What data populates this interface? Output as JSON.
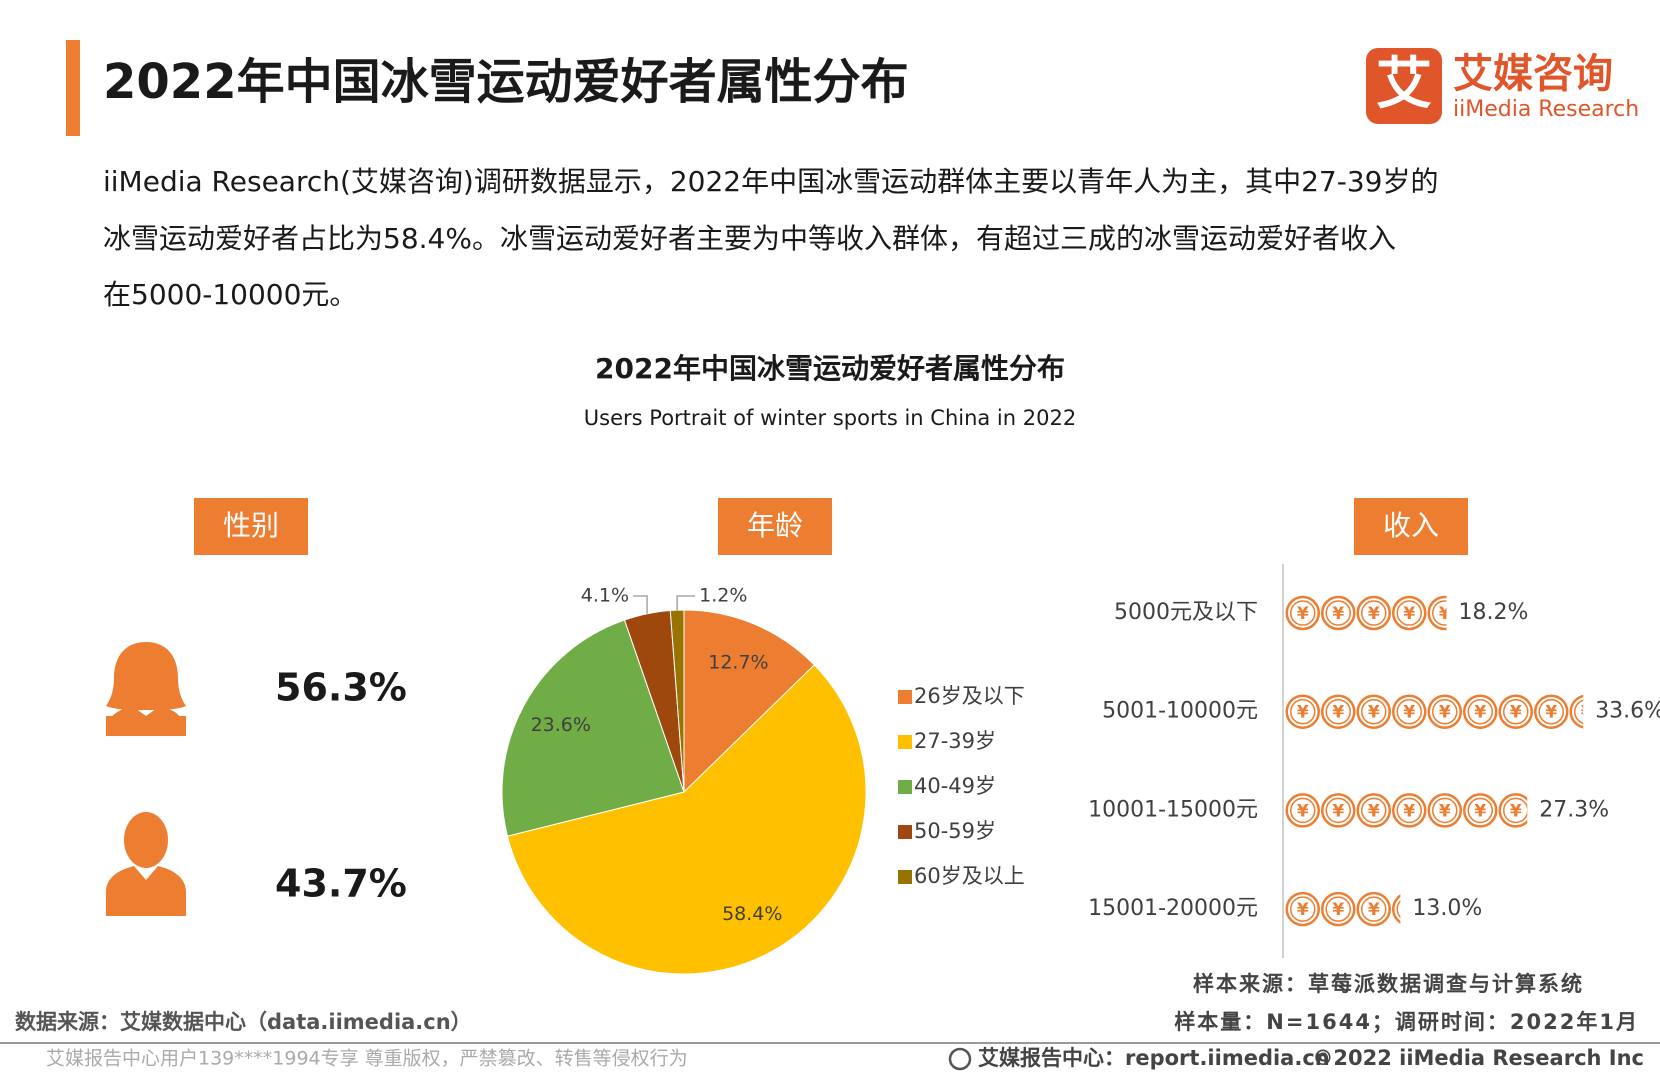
{
  "header": {
    "title": "2022年中国冰雪运动爱好者属性分布",
    "logo_mark": "艾",
    "logo_name": "艾媒咨询",
    "logo_en": "iiMedia Research"
  },
  "description": [
    "iiMedia Research(艾媒咨询)调研数据显示，2022年中国冰雪运动群体主要以青年人为主，其中27-39岁的",
    "冰雪运动爱好者占比为58.4%。冰雪运动爱好者主要为中等收入群体，有超过三成的冰雪运动爱好者收入",
    "在5000-10000元。"
  ],
  "figure": {
    "title": "2022年中国冰雪运动爱好者属性分布",
    "subtitle": "Users Portrait of winter sports in China in 2022"
  },
  "chart_data": [
    {
      "type": "icons",
      "title": "性别",
      "categories": [
        null,
        null
      ],
      "values": [
        56.3,
        43.7
      ],
      "value_labels": [
        "56.3%",
        "43.7%"
      ],
      "color": "#ed7d31"
    },
    {
      "type": "pie",
      "title": "年龄",
      "categories": [
        "26岁及以下",
        "27-39岁",
        "40-49岁",
        "50-59岁",
        "60岁及以上"
      ],
      "values": [
        12.7,
        58.4,
        23.6,
        4.1,
        1.2
      ],
      "value_labels": [
        "12.7%",
        "58.4%",
        "23.6%",
        "4.1%",
        "1.2%"
      ],
      "colors": [
        "#ed7d31",
        "#ffc000",
        "#70ad47",
        "#9e480e",
        "#997300"
      ],
      "legend": "right"
    },
    {
      "type": "pictograph",
      "title": "收入",
      "categories": [
        "5000元及以下",
        "5001-10000元",
        "10001-15000元",
        "15001-20000元"
      ],
      "values": [
        18.2,
        33.6,
        27.3,
        13.0
      ],
      "value_labels": [
        "18.2%",
        "33.6%",
        "27.3%",
        "13.0%"
      ],
      "icon": "¥",
      "color": "#ed7d31"
    }
  ],
  "notes": {
    "sample_source": "样本来源：草莓派数据调查与计算系统",
    "sample_size": "样本量：N=1644；调研时间：2022年1月",
    "data_source": "数据来源：艾媒数据中心（data.iimedia.cn）",
    "watermark": "艾媒报告中心用户139****1994专享 尊重版权，严禁篡改、转售等侵权行为",
    "site": "艾媒报告中心：report.iimedia.cn",
    "copyright": "©2022  iiMedia Research  Inc"
  }
}
